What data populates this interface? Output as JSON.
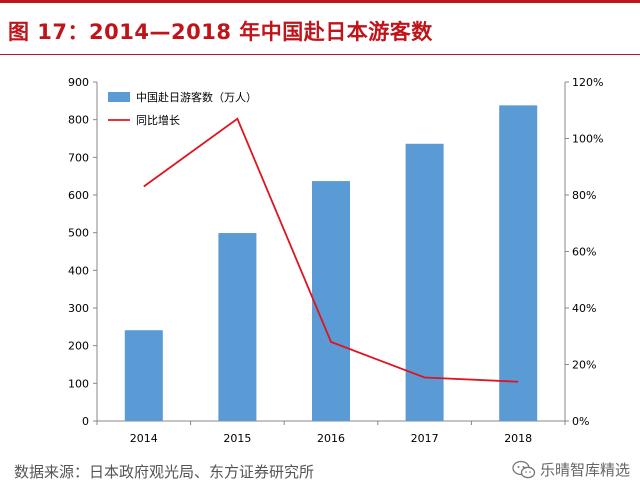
{
  "title": "图 17：2014—2018 年中国赴日本游客数",
  "source": "数据来源：日本政府观光局、东方证券研究所",
  "watermark": "乐晴智库精选",
  "colors": {
    "bar": "#5b9bd5",
    "line": "#e0141e",
    "title": "#c0141b"
  },
  "chart_data": {
    "type": "bar",
    "categories": [
      "2014",
      "2015",
      "2016",
      "2017",
      "2018"
    ],
    "series": [
      {
        "name": "中国赴日游客数（万人）",
        "type": "bar",
        "axis": "left",
        "values": [
          241,
          499,
          637,
          736,
          838
        ]
      },
      {
        "name": "同比增长",
        "type": "line",
        "axis": "right",
        "values": [
          83,
          107,
          28,
          15.4,
          13.9
        ]
      }
    ],
    "ylim_left": [
      0,
      900
    ],
    "yticks_left": [
      "0",
      "100",
      "200",
      "300",
      "400",
      "500",
      "600",
      "700",
      "800",
      "900"
    ],
    "ylim_right": [
      0,
      120
    ],
    "yticks_right": [
      "0%",
      "20%",
      "40%",
      "60%",
      "80%",
      "100%",
      "120%"
    ],
    "legend_position": "top-left",
    "grid": false
  }
}
